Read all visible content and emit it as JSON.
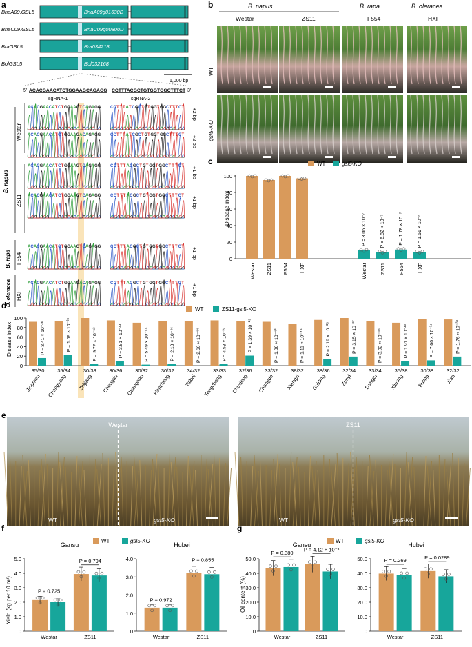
{
  "panel_letters": [
    "a",
    "b",
    "c",
    "d",
    "e",
    "f",
    "g"
  ],
  "colors": {
    "wt": "#d99a5b",
    "ko": "#17a69b",
    "gene": "#1aa39a",
    "highlight": "#f7d28a"
  },
  "panel_a": {
    "genes": [
      {
        "left": "BnaA09.GSL5",
        "inner": "BnaA09g01630D"
      },
      {
        "left": "BnaC09.GSL5",
        "inner": "BnaC09g00800D"
      },
      {
        "left": "BraGSL5",
        "inner": "Bra034218"
      },
      {
        "left": "BolGSL5",
        "inner": "Bol032168"
      }
    ],
    "scale_label": "1,000 bp",
    "seq_prime5": "5′",
    "seq_left": "ACACGAACATCTGGAAGCAGAGG",
    "seq_right": "CCTTTACGCTGTGGTGGCTTTCT",
    "seq_prime3": "3′",
    "sgrna1": "sgRNA-1",
    "sgrna2": "sgRNA-2",
    "rows": [
      {
        "left": "ACACGAACATCTGGAAGTCAGAGG",
        "right": "CCTTTATCGCTGTGGTGGCTTTCT",
        "mut": "+2 bp"
      },
      {
        "left": "ACACGAACATCTGGAAGACAGAGG",
        "right": "CCTTTATCGCTGTGGTGGCTTTCT",
        "mut": "+2 bp"
      },
      {
        "left": "ACACGAACATCTGGAAGTCAGAGG",
        "right": "CCTTTACGCTGTGGTGGCTTTCT",
        "mut": "+1 bp"
      },
      {
        "left": "ACACGAACATCTGGAAGTCAGAGG",
        "right": "CCTTTACGCTGTGGTGGCTTTCT",
        "mut": "+1 bp"
      },
      {
        "left": "ACACGAACATCTGGAAGTCAGAGG",
        "right": "CCTTTACGCTGTGGTGGCTTTCT",
        "mut": "+1 bp"
      },
      {
        "left": "ACACGAACATCTGGAAGACAGAGG",
        "right": "CCTTTACGCTGTGGTGGCTTTCT",
        "mut": "+1 bp"
      }
    ],
    "group_labels": {
      "napus": "B. napus",
      "westar": "Westar",
      "zs11": "ZS11",
      "rapa": "B. rapa",
      "f554": "F554",
      "oleracea": "B. oleracea",
      "hxf": "HXF"
    }
  },
  "panel_b": {
    "species": [
      "B. napus",
      "B. rapa",
      "B. oleracea"
    ],
    "cultivars": [
      "Westar",
      "ZS11",
      "F554",
      "HXF"
    ],
    "rows": [
      "WT",
      "gsl5-KO"
    ]
  },
  "panel_c": {
    "legend": [
      "WT",
      "gsl5-KO"
    ],
    "chart_data": {
      "type": "bar",
      "ylabel": "Disease index",
      "ylim": [
        0,
        100
      ],
      "yticks": [
        0,
        20,
        40,
        60,
        80,
        100
      ],
      "categories_wt": [
        "Westar",
        "ZS11",
        "F554",
        "HXF"
      ],
      "categories_ko": [
        "Westar",
        "ZS11",
        "F554",
        "HXF"
      ],
      "series": [
        {
          "name": "WT",
          "values": [
            100,
            95,
            100,
            97
          ]
        },
        {
          "name": "gsl5-KO",
          "values": [
            10,
            8,
            11,
            8
          ]
        }
      ],
      "pvalues": [
        "P = 3.06 × 10⁻⁷",
        "P = 6.82 × 10⁻⁷",
        "P = 1.78 × 10⁻⁷",
        "P = 1.51 × 10⁻⁶"
      ]
    }
  },
  "panel_d": {
    "legend": [
      "WT",
      "ZS11-gsl5-KO"
    ],
    "chart_data": {
      "type": "bar",
      "ylabel": "Disease index",
      "ylim": [
        0,
        100
      ],
      "yticks": [
        0,
        20,
        40,
        60,
        80,
        100
      ],
      "categories": [
        "Jingmen",
        "Changyang",
        "Zhijiang",
        "Chengdu",
        "Guanghan",
        "Hanzhong",
        "Taibai",
        "Tengchong",
        "Chuxiong",
        "Changde",
        "Xiangxi",
        "Guiding",
        "Zunyi",
        "Dangtu",
        "Xiuning",
        "Fuling",
        "Ji'an"
      ],
      "counts": [
        "35/30",
        "35/34",
        "30/38",
        "30/36",
        "30/32",
        "30/32",
        "34/32",
        "33/33",
        "32/36",
        "33/32",
        "38/32",
        "38/36",
        "32/34",
        "33/34",
        "35/38",
        "30/38",
        "32/32"
      ],
      "series": [
        {
          "name": "WT",
          "values": [
            92,
            93,
            100,
            95,
            90,
            93,
            93,
            95,
            94,
            92,
            88,
            96,
            100,
            94,
            90,
            98,
            97
          ]
        },
        {
          "name": "ZS11-gsl5-KO",
          "values": [
            16,
            23,
            3,
            10,
            2,
            3,
            0,
            3,
            21,
            0,
            0,
            14,
            19,
            0,
            10,
            11,
            19
          ]
        }
      ],
      "pvalues": [
        "P = 3.41 × 10⁻²⁶",
        "P = 1.59 × 10⁻²⁸",
        "P = 9.72 × 10⁻⁵²",
        "P = 3.51 × 10⁻⁴³",
        "P = 5.49 × 10⁻⁴⁴",
        "P = 2.10 × 10⁻⁴⁶",
        "P = 2.66 × 10⁻⁴⁴",
        "P = 4.53 × 10⁻³⁷",
        "P = 1.39 × 10⁻²⁹",
        "P = 1.30 × 10⁻⁴³",
        "P = 1.11 × 10⁻⁴⁹",
        "P = 2.19 × 10⁻³⁸",
        "P = 3.15 × 10⁻³⁷",
        "P = 3.92 × 10⁻⁴⁵",
        "P = 1.91 × 10⁻³³",
        "P = 7.00 × 10⁻³⁴",
        "P = 1.76 × 10⁻³⁸"
      ]
    }
  },
  "panel_e": {
    "photos": [
      {
        "title": "Westar",
        "left": "WT",
        "right": "gsl5-KO"
      },
      {
        "title": "ZS11",
        "left": "WT",
        "right": "gsl5-KO"
      }
    ]
  },
  "panel_f": {
    "legend": [
      "WT",
      "gsl5-KO"
    ],
    "chart_data": [
      {
        "type": "bar",
        "title": "Gansu",
        "ylabel": "Yield (kg per 10 m²)",
        "ylim": [
          0,
          5.0
        ],
        "yticks": [
          "0",
          "1.0",
          "2.0",
          "3.0",
          "4.0",
          "5.0"
        ],
        "categories": [
          "Westar",
          "ZS11"
        ],
        "series": [
          {
            "name": "WT",
            "values": [
              2.15,
              3.95
            ]
          },
          {
            "name": "gsl5-KO",
            "values": [
              2.0,
              3.85
            ]
          }
        ],
        "pvalues": [
          "P = 0.725",
          "P = 0.794"
        ]
      },
      {
        "type": "bar",
        "title": "Hubei",
        "ylabel": "",
        "ylim": [
          0,
          4.0
        ],
        "yticks": [
          "0",
          "1.0",
          "2.0",
          "3.0",
          "4.0"
        ],
        "categories": [
          "Westar",
          "ZS11"
        ],
        "series": [
          {
            "name": "WT",
            "values": [
              1.3,
              3.2
            ]
          },
          {
            "name": "gsl5-KO",
            "values": [
              1.3,
              3.15
            ]
          }
        ],
        "pvalues": [
          "P = 0.972",
          "P = 0.855"
        ]
      }
    ]
  },
  "panel_g": {
    "legend": [
      "WT",
      "gsl5-KO"
    ],
    "chart_data": [
      {
        "type": "bar",
        "title": "Gansu",
        "ylabel": "Oil content (%)",
        "ylim": [
          0,
          50.0
        ],
        "yticks": [
          "0",
          "10.0",
          "20.0",
          "30.0",
          "40.0",
          "50.0"
        ],
        "categories": [
          "Westar",
          "ZS11"
        ],
        "series": [
          {
            "name": "WT",
            "values": [
              43.5,
              46.2
            ]
          },
          {
            "name": "gsl5-KO",
            "values": [
              44.3,
              41.2
            ]
          }
        ],
        "pvalues": [
          "P = 0.380",
          "P = 4.12 × 10⁻³"
        ]
      },
      {
        "type": "bar",
        "title": "Hubei",
        "ylabel": "",
        "ylim": [
          0,
          50.0
        ],
        "yticks": [
          "0",
          "10.0",
          "20.0",
          "30.0",
          "40.0",
          "50.0"
        ],
        "categories": [
          "Westar",
          "ZS11"
        ],
        "series": [
          {
            "name": "WT",
            "values": [
              39.8,
              41.5
            ]
          },
          {
            "name": "gsl5-KO",
            "values": [
              38.6,
              37.9
            ]
          }
        ],
        "pvalues": [
          "P = 0.269",
          "P = 0.0289"
        ]
      }
    ]
  }
}
